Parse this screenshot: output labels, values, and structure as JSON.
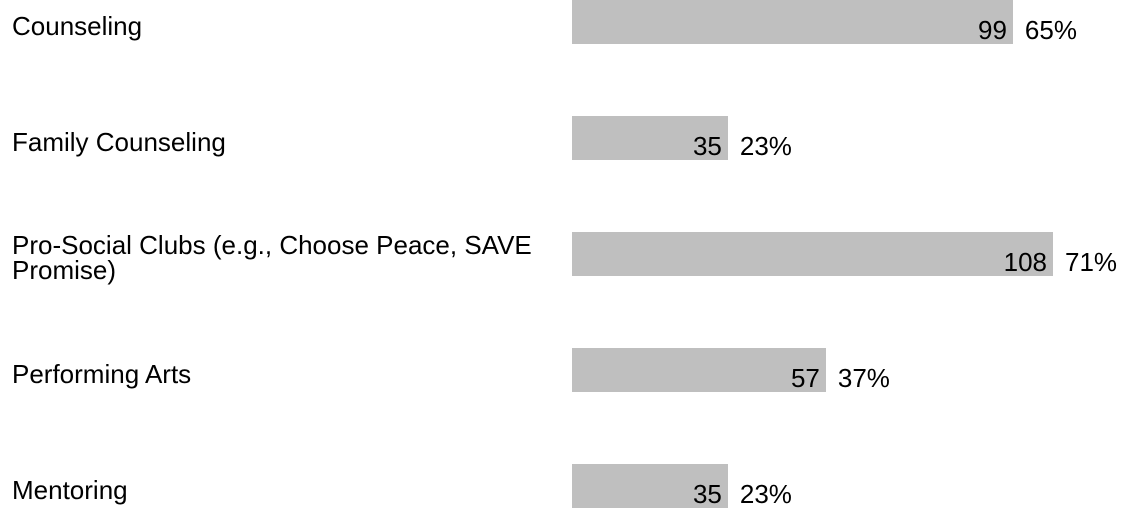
{
  "chart_data": {
    "type": "bar",
    "categories": [
      "Counseling",
      "Family Counseling",
      "Pro-Social Clubs (e.g., Choose Peace, SAVE Promise)",
      "Performing Arts",
      "Mentoring"
    ],
    "values": [
      99,
      35,
      108,
      57,
      35
    ],
    "percent_values": [
      65,
      23,
      71,
      37,
      23
    ],
    "percent_labels": [
      "65%",
      "23%",
      "71%",
      "37%",
      "23%"
    ],
    "color": "#bfbfbf"
  }
}
